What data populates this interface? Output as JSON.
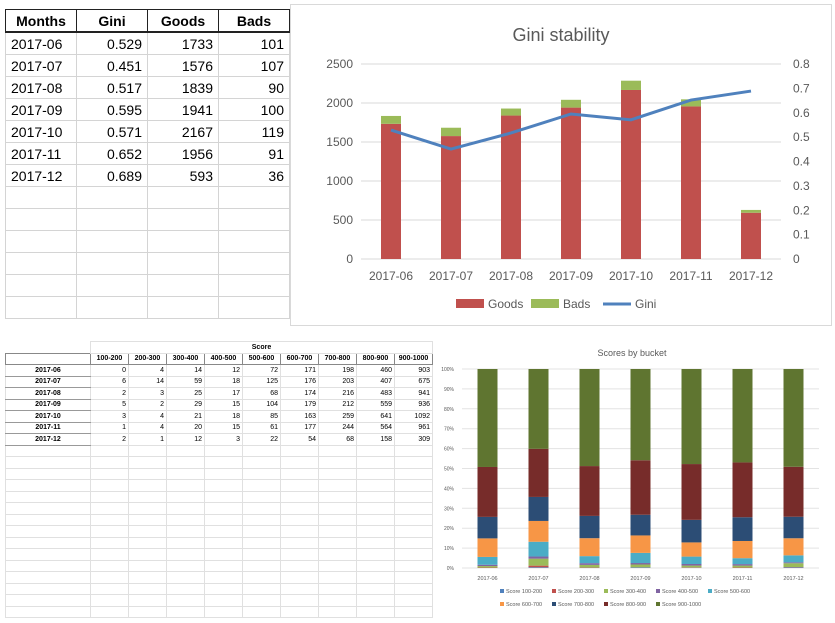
{
  "gini_table": {
    "headers": [
      "Months",
      "Gini",
      "Goods",
      "Bads"
    ],
    "rows": [
      [
        "2017-06",
        "0.529",
        "1733",
        "101"
      ],
      [
        "2017-07",
        "0.451",
        "1576",
        "107"
      ],
      [
        "2017-08",
        "0.517",
        "1839",
        "90"
      ],
      [
        "2017-09",
        "0.595",
        "1941",
        "100"
      ],
      [
        "2017-10",
        "0.571",
        "2167",
        "119"
      ],
      [
        "2017-11",
        "0.652",
        "1956",
        "91"
      ],
      [
        "2017-12",
        "0.689",
        "593",
        "36"
      ]
    ]
  },
  "score_table": {
    "group_header": "Score",
    "buckets": [
      "100-200",
      "200-300",
      "300-400",
      "400-500",
      "500-600",
      "600-700",
      "700-800",
      "800-900",
      "900-1000"
    ],
    "rows": [
      {
        "month": "2017-06",
        "values": [
          0,
          4,
          14,
          12,
          72,
          171,
          198,
          460,
          903
        ]
      },
      {
        "month": "2017-07",
        "values": [
          6,
          14,
          59,
          18,
          125,
          176,
          203,
          407,
          675
        ]
      },
      {
        "month": "2017-08",
        "values": [
          2,
          3,
          25,
          17,
          68,
          174,
          216,
          483,
          941
        ]
      },
      {
        "month": "2017-09",
        "values": [
          5,
          2,
          29,
          15,
          104,
          179,
          212,
          559,
          936
        ]
      },
      {
        "month": "2017-10",
        "values": [
          3,
          4,
          21,
          18,
          85,
          163,
          259,
          641,
          1092
        ]
      },
      {
        "month": "2017-11",
        "values": [
          1,
          4,
          20,
          15,
          61,
          177,
          244,
          564,
          961
        ]
      },
      {
        "month": "2017-12",
        "values": [
          2,
          1,
          12,
          3,
          22,
          54,
          68,
          158,
          309
        ]
      }
    ]
  },
  "chart_data": [
    {
      "type": "bar+line",
      "title": "Gini stability",
      "categories": [
        "2017-06",
        "2017-07",
        "2017-08",
        "2017-09",
        "2017-10",
        "2017-11",
        "2017-12"
      ],
      "series": [
        {
          "name": "Goods",
          "type": "stacked-bar",
          "axis": "left",
          "color": "#c0504d",
          "values": [
            1733,
            1576,
            1839,
            1941,
            2167,
            1956,
            593
          ]
        },
        {
          "name": "Bads",
          "type": "stacked-bar",
          "axis": "left",
          "color": "#9bbb59",
          "values": [
            101,
            107,
            90,
            100,
            119,
            91,
            36
          ]
        },
        {
          "name": "Gini",
          "type": "line",
          "axis": "right",
          "color": "#4f81bd",
          "values": [
            0.529,
            0.451,
            0.517,
            0.595,
            0.571,
            0.652,
            0.689
          ]
        }
      ],
      "ylim_left": [
        0,
        2500
      ],
      "yticks_left": [
        "0",
        "500",
        "1000",
        "1500",
        "2000",
        "2500"
      ],
      "ylim_right": [
        0,
        0.8
      ],
      "yticks_right": [
        "0",
        "0.1",
        "0.2",
        "0.3",
        "0.4",
        "0.5",
        "0.6",
        "0.7",
        "0.8"
      ],
      "grid": true,
      "legend": "bottom"
    },
    {
      "type": "100%-stacked-bar",
      "title": "Scores by bucket",
      "categories": [
        "2017-06",
        "2017-07",
        "2017-08",
        "2017-09",
        "2017-10",
        "2017-11",
        "2017-12"
      ],
      "yticks": [
        "0%",
        "10%",
        "20%",
        "30%",
        "40%",
        "50%",
        "60%",
        "70%",
        "80%",
        "90%",
        "100%"
      ],
      "grid": true,
      "legend": "bottom",
      "series_names": [
        "Score 100-200",
        "Score 200-300",
        "Score 300-400",
        "Score 400-500",
        "Score 500-600",
        "Score 600-700",
        "Score 700-800",
        "Score 800-900",
        "Score 900-1000"
      ],
      "colors": [
        "#4f81bd",
        "#c0504d",
        "#9bbb59",
        "#8064a2",
        "#4bacc6",
        "#f79646",
        "#2c4d75",
        "#772c2a",
        "#5f7530"
      ]
    }
  ]
}
